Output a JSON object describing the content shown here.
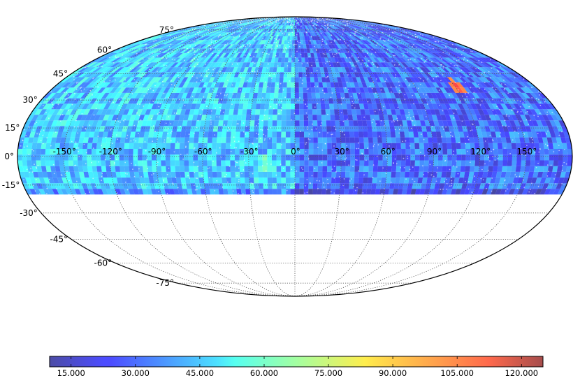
{
  "chart_data": {
    "type": "heatmap",
    "projection": "mollweide",
    "coverage": {
      "dec_min": -20,
      "dec_max": 90
    },
    "color_range": [
      10,
      125
    ],
    "colormap": "jet",
    "grid": true,
    "lat_labels": [
      "75°",
      "60°",
      "45°",
      "30°",
      "15°",
      "0°",
      "-15°",
      "-30°",
      "-45°",
      "-60°",
      "-75°"
    ],
    "lon_labels": [
      "-150°",
      "-120°",
      "-90°",
      "-60°",
      "-30°",
      "0°",
      "30°",
      "60°",
      "90°",
      "120°",
      "150°"
    ],
    "colorbar_ticks": [
      15,
      30,
      45,
      60,
      75,
      90,
      105,
      120
    ],
    "colorbar_tick_labels": [
      "15.000",
      "30.000",
      "45.000",
      "60.000",
      "75.000",
      "90.000",
      "105.000",
      "120.000"
    ],
    "regions": [
      {
        "lon_range": [
          -180,
          0
        ],
        "lat_range": [
          -20,
          90
        ],
        "typical_value": 45
      },
      {
        "lon_range": [
          0,
          180
        ],
        "lat_range": [
          -20,
          90
        ],
        "typical_value": 30
      },
      {
        "lon": 120,
        "lat": 36,
        "value": 115
      },
      {
        "lon": -20,
        "lat": -5,
        "value": 65
      }
    ]
  },
  "colors": {
    "outline": "#000000",
    "grid": "#555555"
  }
}
